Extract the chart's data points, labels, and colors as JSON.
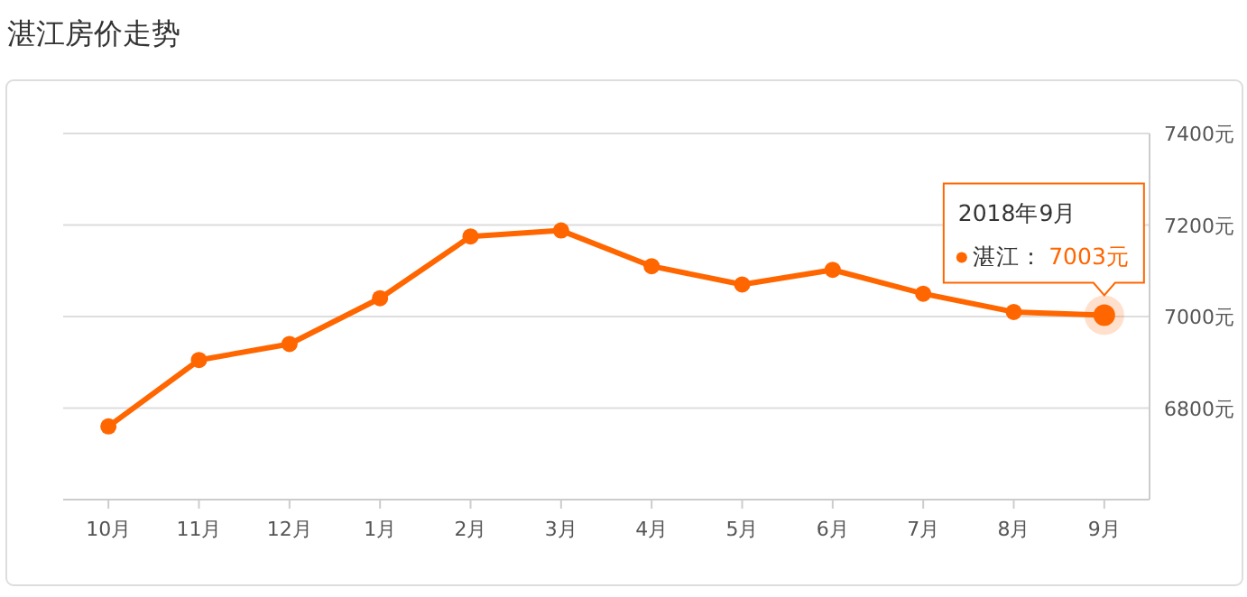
{
  "chart_data": {
    "type": "line",
    "title": "湛江房价走势",
    "categories": [
      "10月",
      "11月",
      "12月",
      "1月",
      "2月",
      "3月",
      "4月",
      "5月",
      "6月",
      "7月",
      "8月",
      "9月"
    ],
    "series": [
      {
        "name": "湛江：",
        "color": "#ff6600",
        "values": [
          6760,
          6905,
          6940,
          7040,
          7175,
          7188,
          7110,
          7070,
          7102,
          7050,
          7010,
          7003
        ],
        "value_labels": [
          null,
          null,
          null,
          null,
          null,
          null,
          null,
          null,
          null,
          null,
          null,
          "7003元"
        ]
      }
    ],
    "ylim": [
      6600,
      7400
    ],
    "yticks": [
      {
        "value": 6800,
        "label": "6800元"
      },
      {
        "value": 7000,
        "label": "7000元"
      },
      {
        "value": 7200,
        "label": "7200元"
      },
      {
        "value": 7400,
        "label": "7400元"
      }
    ],
    "grid": "y",
    "marker": "circle",
    "line_style": "solid",
    "legend": "top right",
    "annotations": [
      "2018年9月"
    ]
  }
}
